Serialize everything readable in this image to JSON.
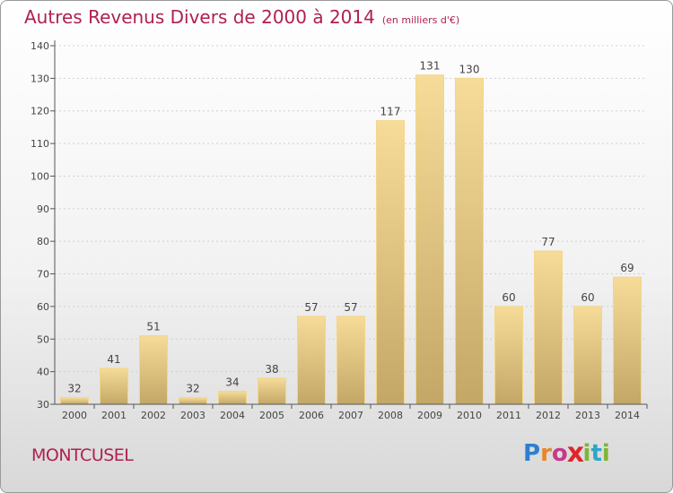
{
  "header": {
    "title": "Autres Revenus Divers de 2000 à 2014",
    "unit": "(en milliers d'€)"
  },
  "footer": {
    "town": "MONTCUSEL",
    "brand_letters": [
      "P",
      "r",
      "o",
      "x",
      "i",
      "t",
      "i"
    ],
    "brand_colors": [
      "#2e7fd0",
      "#e8862a",
      "#c63a8a",
      "#e0252b",
      "#7fb536",
      "#2fa6c9",
      "#7fb536"
    ]
  },
  "colors": {
    "title": "#b0204f",
    "bar_light": "#f6dc98",
    "bar_dark": "#c3a767",
    "axis": "#555555",
    "grid": "#d0d0d0"
  },
  "chart_data": {
    "type": "bar",
    "categories": [
      "2000",
      "2001",
      "2002",
      "2003",
      "2004",
      "2005",
      "2006",
      "2007",
      "2008",
      "2009",
      "2010",
      "2011",
      "2012",
      "2013",
      "2014"
    ],
    "values": [
      32,
      41,
      51,
      32,
      34,
      38,
      57,
      57,
      117,
      131,
      130,
      60,
      77,
      60,
      69
    ],
    "data_labels": [
      "32",
      "41",
      "51",
      "32",
      "34",
      "38",
      "57",
      "57",
      "117",
      "131",
      "130",
      "60",
      "77",
      "60",
      "69"
    ],
    "ylim": [
      30,
      140
    ],
    "yticks": [
      30,
      40,
      50,
      60,
      70,
      80,
      90,
      100,
      110,
      120,
      130,
      140
    ],
    "ytick_labels": [
      "30",
      "40",
      "50",
      "60",
      "70",
      "80",
      "90",
      "100",
      "110",
      "120",
      "130",
      "140"
    ],
    "grid": "horizontal dotted"
  }
}
